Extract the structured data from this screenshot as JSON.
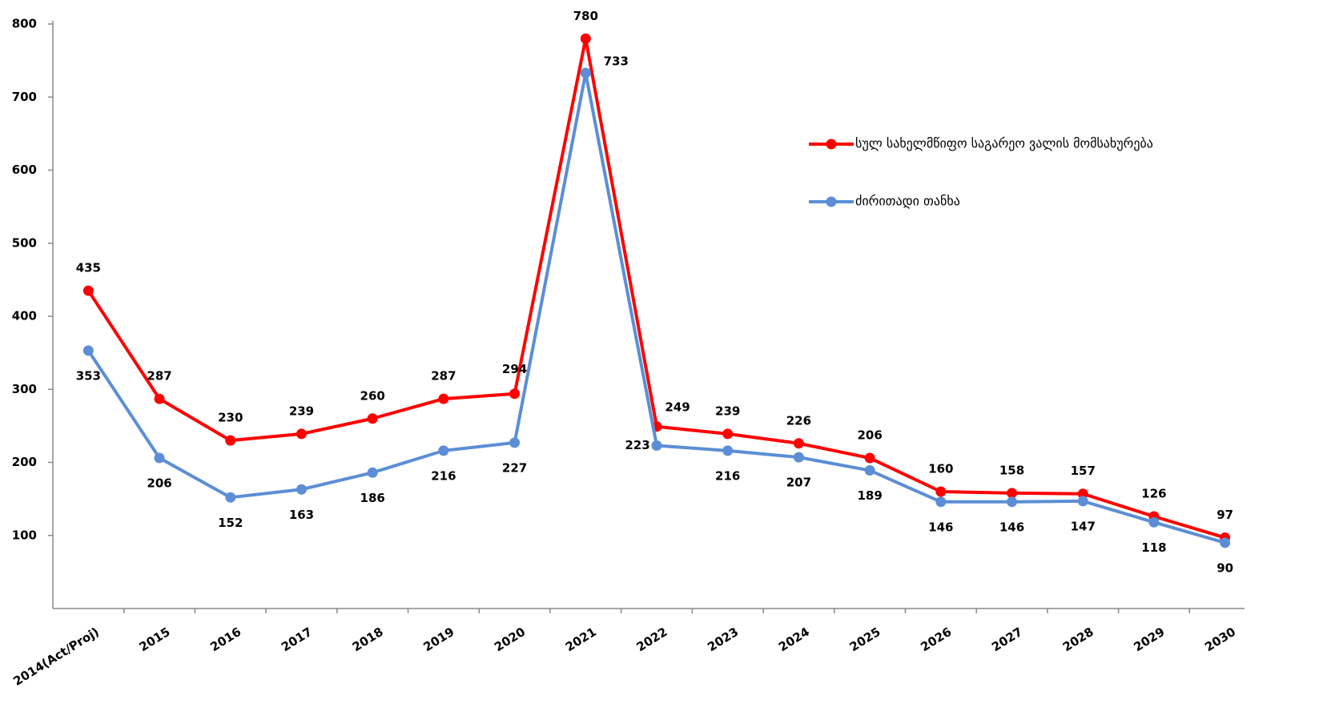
{
  "chart_data": {
    "type": "line",
    "categories": [
      "2014(Act/Proj)",
      "2015",
      "2016",
      "2017",
      "2018",
      "2019",
      "2020",
      "2021",
      "2022",
      "2023",
      "2024",
      "2025",
      "2026",
      "2027",
      "2028",
      "2029",
      "2030"
    ],
    "series": [
      {
        "name": "სულ სახელმწიფო საგარეო ვალის მომსახურება",
        "color": "#ff0000",
        "values": [
          435,
          287,
          230,
          239,
          260,
          287,
          294,
          780,
          249,
          239,
          226,
          206,
          160,
          158,
          157,
          126,
          97
        ]
      },
      {
        "name": "ძირითადი თანხა",
        "color": "#5b8ed6",
        "values": [
          353,
          206,
          152,
          163,
          186,
          216,
          227,
          733,
          223,
          216,
          207,
          189,
          146,
          146,
          147,
          118,
          90
        ]
      }
    ],
    "ylim": [
      0,
      800
    ],
    "yticks": [
      100,
      200,
      300,
      400,
      500,
      600,
      700,
      800
    ],
    "legend": "right",
    "grid": false
  }
}
